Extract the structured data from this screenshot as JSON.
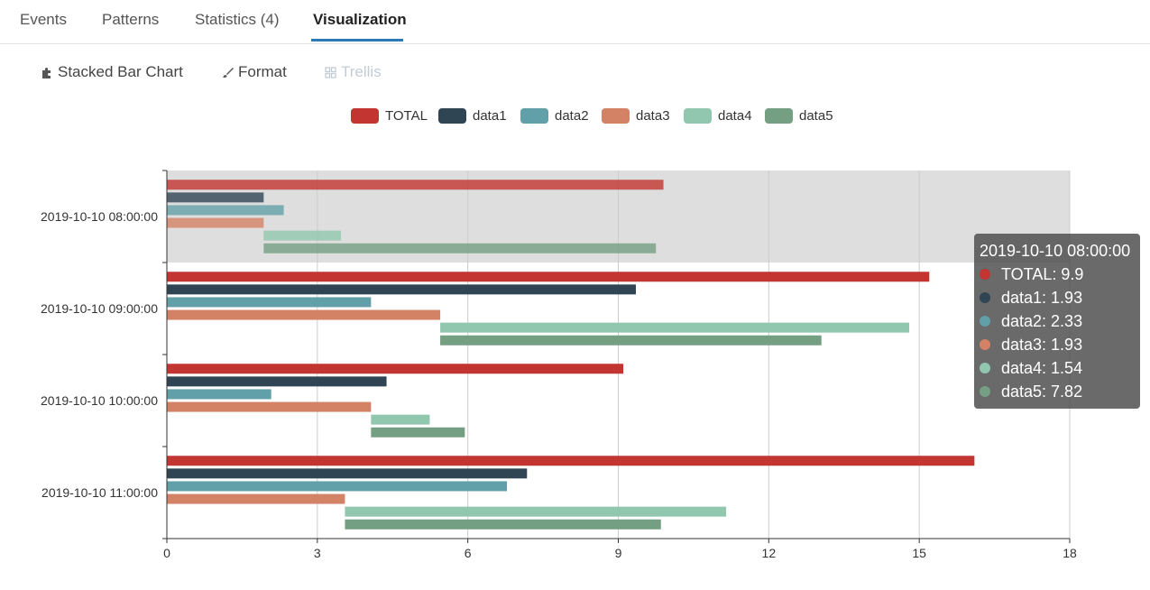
{
  "tabs": [
    {
      "label": "Events"
    },
    {
      "label": "Patterns"
    },
    {
      "label": "Statistics (4)"
    },
    {
      "label": "Visualization"
    }
  ],
  "toolbar": {
    "chart_type_label": "Stacked Bar Chart",
    "format_label": "Format",
    "trellis_label": "Trellis"
  },
  "colors": {
    "TOTAL": "#c23531",
    "data1": "#2f4554",
    "data2": "#61a0a8",
    "data3": "#d48265",
    "data4": "#91c7ae",
    "data5": "#749f83"
  },
  "chart_data": {
    "type": "bar",
    "orientation": "horizontal",
    "categories": [
      "2019-10-10 08:00:00",
      "2019-10-10 09:00:00",
      "2019-10-10 10:00:00",
      "2019-10-10 11:00:00"
    ],
    "x_ticks": [
      "0",
      "3",
      "6",
      "9",
      "12",
      "15",
      "18"
    ],
    "xlim": [
      0,
      18
    ],
    "grid": true,
    "legend_position": "top-center",
    "highlighted_category": "2019-10-10 08:00:00",
    "series": [
      {
        "name": "TOTAL",
        "start": [
          0,
          0,
          0,
          0
        ],
        "values": [
          9.9,
          15.2,
          9.1,
          16.1
        ]
      },
      {
        "name": "data1",
        "start": [
          0,
          0,
          0,
          0
        ],
        "values": [
          1.93,
          9.35,
          4.38,
          7.18
        ]
      },
      {
        "name": "data2",
        "start": [
          0,
          0,
          0,
          0
        ],
        "values": [
          2.33,
          4.07,
          2.08,
          6.78
        ]
      },
      {
        "name": "data3",
        "start": [
          0,
          0,
          0,
          0
        ],
        "values": [
          1.93,
          5.45,
          4.07,
          3.55
        ]
      },
      {
        "name": "data4",
        "start": [
          1.93,
          5.45,
          4.07,
          3.55
        ],
        "values": [
          1.54,
          9.35,
          1.17,
          7.6
        ]
      },
      {
        "name": "data5",
        "start": [
          1.93,
          5.45,
          4.07,
          3.55
        ],
        "values": [
          7.82,
          7.6,
          1.87,
          6.3
        ]
      }
    ]
  },
  "tooltip": {
    "title": "2019-10-10 08:00:00",
    "rows": [
      {
        "text": "TOTAL: 9.9"
      },
      {
        "text": "data1: 1.93"
      },
      {
        "text": "data2: 2.33"
      },
      {
        "text": "data3: 1.93"
      },
      {
        "text": "data4: 1.54"
      },
      {
        "text": "data5: 7.82"
      }
    ]
  }
}
